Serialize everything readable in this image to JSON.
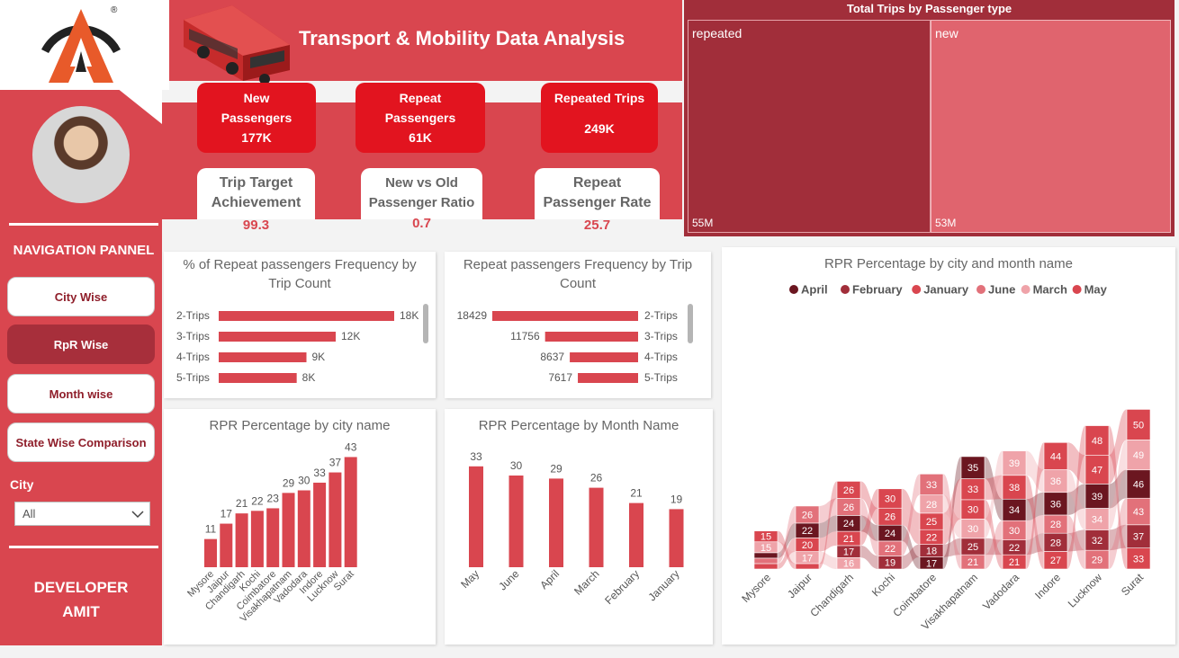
{
  "brand": {
    "trademark": "®"
  },
  "header": {
    "title": "Transport & Mobility Data Analysis"
  },
  "kpis": {
    "new_passengers": {
      "label1": "New",
      "label2": "Passengers",
      "value": "177K"
    },
    "repeat_passengers": {
      "label1": "Repeat",
      "label2": "Passengers",
      "value": "61K"
    },
    "repeated_trips": {
      "label1": "Repeated Trips",
      "value": "249K"
    },
    "trip_target": {
      "label1": "Trip Target",
      "label2": "Achievement",
      "value": "99.3"
    },
    "ratio": {
      "label1": "New vs Old",
      "label2": "Passenger Ratio",
      "value": "0.7"
    },
    "repeat_rate": {
      "label1": "Repeat",
      "label2": "Passenger Rate",
      "value": "25.7"
    }
  },
  "nav": {
    "title": "NAVIGATION PANNEL",
    "items": [
      "City Wise",
      "RpR Wise",
      "Month wise",
      "State Wise Comparison"
    ],
    "active": 1
  },
  "filter": {
    "label": "City",
    "value": "All"
  },
  "developer": {
    "line1": "DEVELOPER",
    "line2": "AMIT"
  },
  "colors": {
    "primary": "#d9464f",
    "dark": "#a12e3a",
    "bright": "#e2141f"
  },
  "chart_data": [
    {
      "type": "treemap",
      "title": "Total Trips by Passenger type",
      "categories": [
        "repeated",
        "new"
      ],
      "values": [
        55,
        53
      ],
      "value_labels": [
        "55M",
        "53M"
      ]
    },
    {
      "type": "bar",
      "orientation": "horizontal",
      "title": "% of Repeat passengers Frequency by Trip Count",
      "categories": [
        "2-Trips",
        "3-Trips",
        "4-Trips",
        "5-Trips"
      ],
      "values": [
        18,
        12,
        9,
        8
      ],
      "value_labels": [
        "18K",
        "12K",
        "9K",
        "8K"
      ]
    },
    {
      "type": "bar",
      "orientation": "horizontal",
      "title": "Repeat passengers Frequency by Trip Count",
      "categories": [
        "2-Trips",
        "3-Trips",
        "4-Trips",
        "5-Trips"
      ],
      "values": [
        18429,
        11756,
        8637,
        7617
      ]
    },
    {
      "type": "bar",
      "title": "RPR Percentage by city name",
      "categories": [
        "Mysore",
        "Jaipur",
        "Chandigarh",
        "Kochi",
        "Coimbatore",
        "Visakhapatnam",
        "Vadodara",
        "Indore",
        "Lucknow",
        "Surat"
      ],
      "values": [
        11,
        17,
        21,
        22,
        23,
        29,
        30,
        33,
        37,
        43
      ]
    },
    {
      "type": "bar",
      "title": "RPR Percentage by Month Name",
      "categories": [
        "May",
        "June",
        "April",
        "March",
        "February",
        "January"
      ],
      "values": [
        33,
        30,
        29,
        26,
        21,
        19
      ]
    },
    {
      "type": "ribbon",
      "title": "RPR Percentage by city and month name",
      "legend": [
        "April",
        "February",
        "January",
        "June",
        "March",
        "May"
      ],
      "series_colors": [
        "#6b1620",
        "#a12e3a",
        "#d9464f",
        "#e2717a",
        "#efa3a9",
        "#d9464f"
      ],
      "categories": [
        "Mysore",
        "Jaipur",
        "Chandigarh",
        "Kochi",
        "Coimbatore",
        "Visakhapatnam",
        "Vadodara",
        "Indore",
        "Lucknow",
        "Surat"
      ],
      "stacks": [
        [
          {
            "s": "January",
            "v": null
          },
          {
            "s": "June",
            "v": null
          },
          {
            "s": "April",
            "v": null
          },
          {
            "s": "March",
            "v": 15
          },
          {
            "s": "May",
            "v": 15
          }
        ],
        [
          {
            "s": "May",
            "v": null
          },
          {
            "s": "March",
            "v": 17
          },
          {
            "s": "January",
            "v": 20
          },
          {
            "s": "April",
            "v": 22
          },
          {
            "s": "June",
            "v": 26
          }
        ],
        [
          {
            "s": "March",
            "v": 16
          },
          {
            "s": "February",
            "v": 17
          },
          {
            "s": "January",
            "v": 21
          },
          {
            "s": "April",
            "v": 24
          },
          {
            "s": "June",
            "v": 26
          },
          {
            "s": "May",
            "v": 26
          }
        ],
        [
          {
            "s": "February",
            "v": 19
          },
          {
            "s": "June",
            "v": 22
          },
          {
            "s": "April",
            "v": 24
          },
          {
            "s": "May",
            "v": 26
          },
          {
            "s": "January",
            "v": 30
          }
        ],
        [
          {
            "s": "April",
            "v": 17
          },
          {
            "s": "February",
            "v": 18
          },
          {
            "s": "May",
            "v": 22
          },
          {
            "s": "January",
            "v": 25
          },
          {
            "s": "March",
            "v": 28
          },
          {
            "s": "June",
            "v": 33
          }
        ],
        [
          {
            "s": "June",
            "v": 21
          },
          {
            "s": "February",
            "v": 25
          },
          {
            "s": "March",
            "v": 30
          },
          {
            "s": "May",
            "v": 30
          },
          {
            "s": "January",
            "v": 33
          },
          {
            "s": "April",
            "v": 35
          }
        ],
        [
          {
            "s": "May",
            "v": 21
          },
          {
            "s": "February",
            "v": 22
          },
          {
            "s": "June",
            "v": 30
          },
          {
            "s": "April",
            "v": 34
          },
          {
            "s": "January",
            "v": 38
          },
          {
            "s": "March",
            "v": 39
          }
        ],
        [
          {
            "s": "January",
            "v": 27
          },
          {
            "s": "February",
            "v": 28
          },
          {
            "s": "June",
            "v": 28
          },
          {
            "s": "April",
            "v": 36
          },
          {
            "s": "March",
            "v": 36
          },
          {
            "s": "May",
            "v": 44
          }
        ],
        [
          {
            "s": "June",
            "v": 29
          },
          {
            "s": "February",
            "v": 32
          },
          {
            "s": "March",
            "v": 34
          },
          {
            "s": "April",
            "v": 39
          },
          {
            "s": "May",
            "v": 47
          },
          {
            "s": "January",
            "v": 48
          }
        ],
        [
          {
            "s": "January",
            "v": 33
          },
          {
            "s": "February",
            "v": 37
          },
          {
            "s": "June",
            "v": 43
          },
          {
            "s": "April",
            "v": 46
          },
          {
            "s": "March",
            "v": 49
          },
          {
            "s": "May",
            "v": 50
          }
        ]
      ]
    }
  ]
}
